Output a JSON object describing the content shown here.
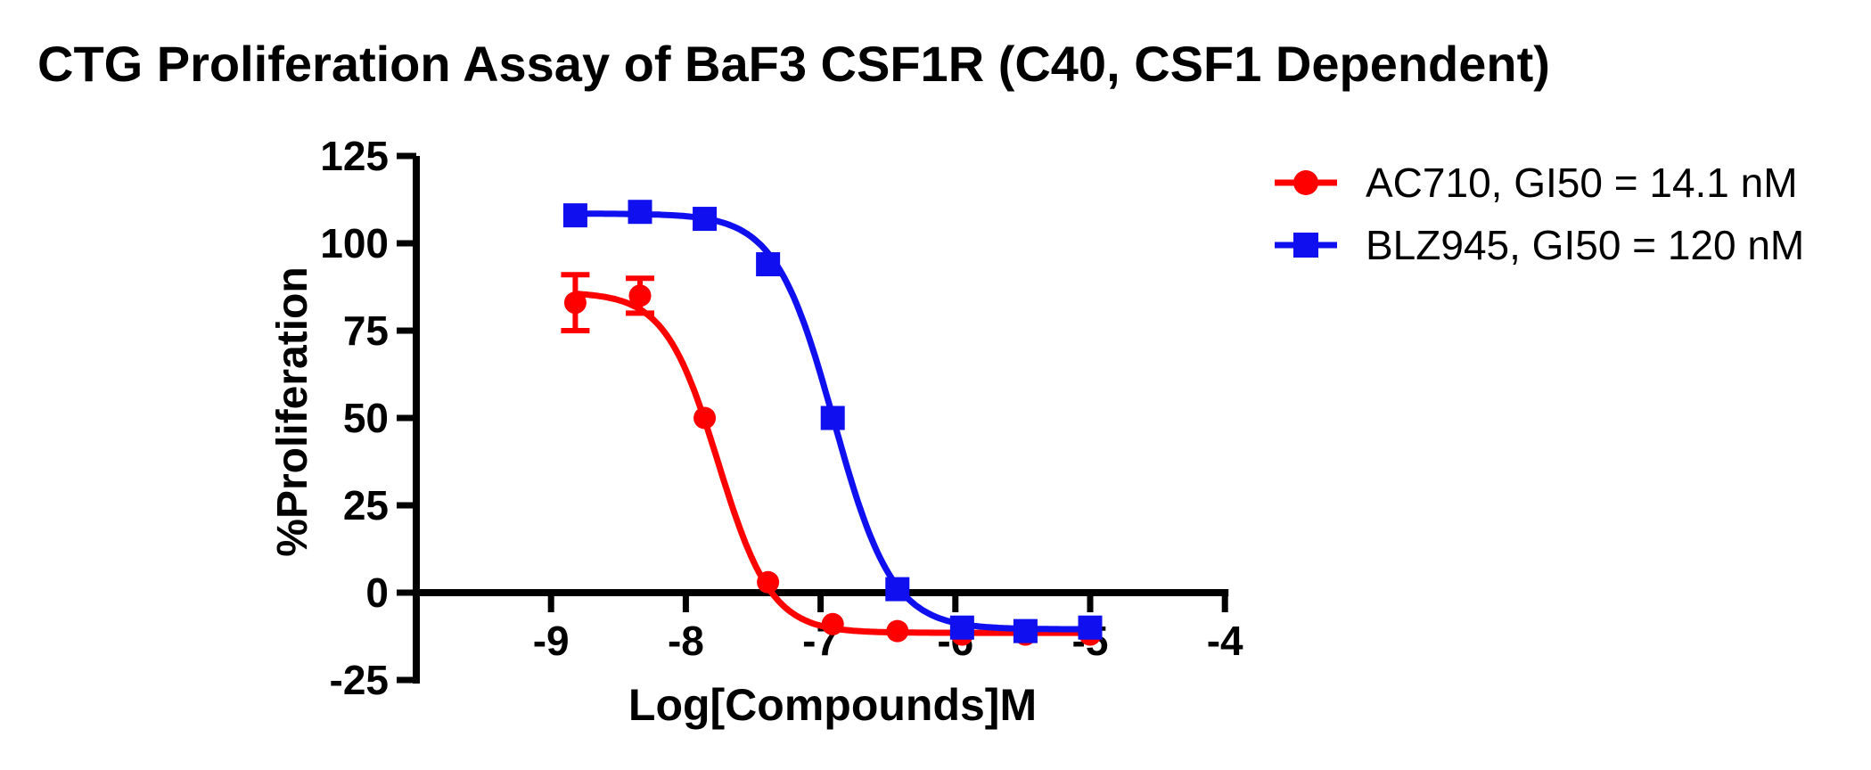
{
  "header": {
    "title": "CTG Proliferation Assay of BaF3 CSF1R (C40, CSF1 Dependent)"
  },
  "legend": {
    "entries": [
      {
        "label": "AC710, GI50 = 14.1 nM",
        "color": "#ff0000",
        "marker": "circle"
      },
      {
        "label": "BLZ945, GI50 = 120 nM",
        "color": "#0f0fef",
        "marker": "square"
      }
    ]
  },
  "chart_data": {
    "type": "line",
    "subtype": "dose-response-scatter-with-4PL-fit",
    "title": "CTG Proliferation Assay of BaF3 CSF1R (C40, CSF1 Dependent)",
    "xlabel": "Log[Compounds]M",
    "ylabel": "%Proliferation",
    "xlim": [
      -10,
      -4
    ],
    "ylim": [
      -25,
      125
    ],
    "x_ticks": [
      -9,
      -8,
      -7,
      -6,
      -5,
      -4
    ],
    "y_ticks": [
      -25,
      0,
      25,
      50,
      75,
      100,
      125
    ],
    "grid": false,
    "legend_position": "right",
    "axis_color": "#000000",
    "x": [
      -8.82,
      -8.34,
      -7.86,
      -7.39,
      -6.91,
      -6.43,
      -5.95,
      -5.48,
      -5.0
    ],
    "series": [
      {
        "name": "AC710",
        "label": "AC710, GI50 = 14.1 nM",
        "color": "#ff0000",
        "marker": "circle",
        "values": [
          83,
          85,
          50,
          3,
          -9,
          -11,
          -12,
          -12,
          -12
        ],
        "errors": [
          8,
          5,
          0,
          0,
          0,
          0,
          0,
          0,
          0
        ],
        "fit": {
          "top": 86,
          "bottom": -11.5,
          "logec50": -7.76,
          "hill": 2.2
        }
      },
      {
        "name": "BLZ945",
        "label": "BLZ945, GI50 = 120 nM",
        "color": "#0f0fef",
        "marker": "square",
        "values": [
          108,
          109,
          107,
          94,
          50,
          1,
          -10,
          -11,
          -10
        ],
        "errors": [
          0,
          0,
          0,
          0,
          0,
          0,
          0,
          0,
          0
        ],
        "fit": {
          "top": 108.5,
          "bottom": -10.5,
          "logec50": -6.9,
          "hill": 2.0
        }
      }
    ]
  }
}
